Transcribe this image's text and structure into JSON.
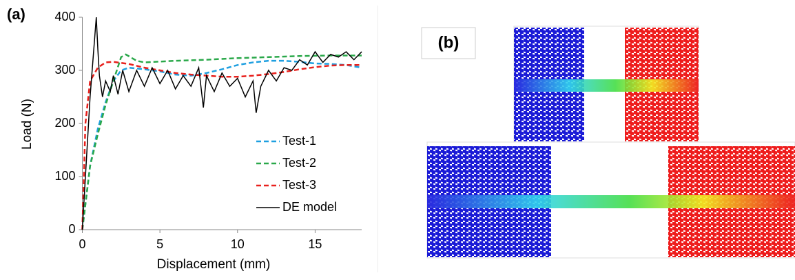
{
  "chart_data": {
    "type": "line",
    "label": "(a)",
    "x_label": "Displacement (mm)",
    "y_label": "Load (N)",
    "xlim": [
      0,
      18
    ],
    "xticks": [
      0,
      5,
      10,
      15
    ],
    "ylim": [
      0,
      400
    ],
    "yticks": [
      0,
      100,
      200,
      300,
      400
    ],
    "legend": "lower right",
    "series": [
      {
        "name": "Test-1",
        "color": "#1e9fe0",
        "dash": "dashed",
        "x": [
          0,
          0.5,
          1,
          1.5,
          2,
          2.5,
          3,
          4,
          5,
          6,
          7,
          8,
          9,
          10,
          11,
          12,
          13,
          14,
          15,
          16,
          17,
          18
        ],
        "values": [
          0,
          120,
          190,
          240,
          280,
          300,
          305,
          302,
          298,
          292,
          290,
          295,
          302,
          310,
          315,
          318,
          318,
          316,
          313,
          312,
          310,
          305
        ]
      },
      {
        "name": "Test-2",
        "color": "#2aa84a",
        "dash": "dashed",
        "x": [
          0,
          0.5,
          1,
          1.5,
          2,
          2.5,
          2.8,
          3.5,
          4,
          6,
          8,
          10,
          12,
          14,
          16,
          18
        ],
        "values": [
          0,
          120,
          180,
          235,
          280,
          325,
          330,
          318,
          315,
          318,
          320,
          323,
          325,
          327,
          328,
          328
        ]
      },
      {
        "name": "Test-3",
        "color": "#e8201c",
        "dash": "dashed",
        "x": [
          0,
          0.2,
          0.5,
          1,
          1.5,
          2,
          3,
          4,
          5,
          6,
          7,
          8,
          9,
          10,
          11,
          12,
          13,
          14,
          15,
          16,
          17,
          18
        ],
        "values": [
          0,
          200,
          280,
          305,
          315,
          316,
          312,
          305,
          300,
          295,
          292,
          290,
          288,
          288,
          290,
          293,
          297,
          302,
          306,
          309,
          310,
          310
        ]
      },
      {
        "name": "DE model",
        "color": "#000000",
        "dash": "solid",
        "x": [
          0,
          0.5,
          0.9,
          1,
          1.1,
          1.3,
          1.5,
          1.8,
          2,
          2.3,
          2.6,
          3,
          3.5,
          4,
          4.5,
          5,
          5.5,
          6,
          6.5,
          7,
          7.5,
          7.8,
          8,
          8.5,
          9,
          9.5,
          10,
          10.5,
          11,
          11.2,
          11.5,
          12,
          12.5,
          13,
          13.5,
          14,
          14.5,
          15,
          15.5,
          16,
          16.5,
          17,
          17.5,
          18
        ],
        "values": [
          0,
          250,
          400,
          340,
          290,
          250,
          280,
          260,
          290,
          255,
          300,
          260,
          300,
          270,
          305,
          275,
          300,
          265,
          290,
          270,
          305,
          230,
          290,
          260,
          295,
          270,
          285,
          250,
          280,
          220,
          270,
          300,
          280,
          305,
          300,
          320,
          310,
          335,
          315,
          330,
          325,
          335,
          320,
          335
        ]
      }
    ]
  },
  "image_panel": {
    "label": "(b)"
  }
}
